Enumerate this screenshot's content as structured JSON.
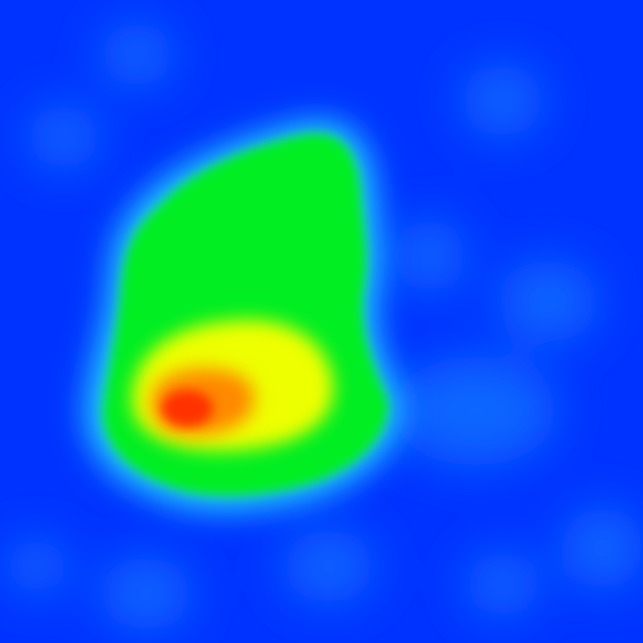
{
  "image": {
    "kind": "heatmap",
    "colormap": "jet",
    "colors": {
      "background": "#0033ff",
      "background_light": "#0a66ff",
      "cyan": "#22d4ff",
      "green": "#00ee22",
      "yellow": "#eeff00",
      "orange": "#ff8800",
      "red": "#ff3300"
    }
  }
}
